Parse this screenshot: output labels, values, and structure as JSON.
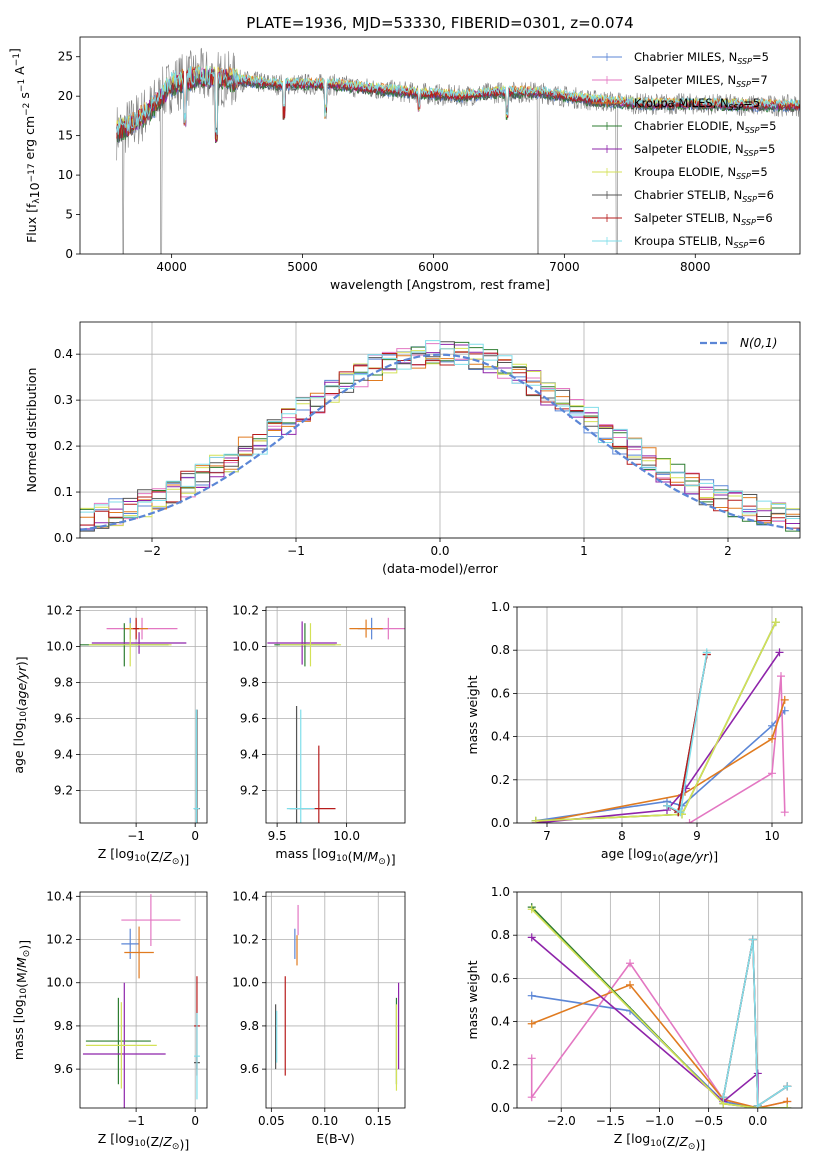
{
  "figure_title": "PLATE=1936, MJD=53330, FIBERID=0301, z=0.074",
  "colors": {
    "chabrier_miles": "#5b86d6",
    "salpeter_miles": "#e377c2",
    "kroupa_miles": "#e07b20",
    "chabrier_elodie": "#2e7d32",
    "salpeter_elodie": "#8e24aa",
    "kroupa_elodie": "#d4e157",
    "chabrier_stelib": "#555555",
    "salpeter_stelib": "#b71c1c",
    "kroupa_stelib": "#80deea",
    "normal_curve": "#5b86d6",
    "data": "#808080"
  },
  "chart_data": [
    {
      "id": "spectrum",
      "type": "line",
      "xlabel": "wavelength [Angstrom, rest frame]",
      "ylabel": "Flux [f_λ10^-17 erg cm^-2 s^-1 A^-1]",
      "xlim": [
        3300,
        8800
      ],
      "ylim": [
        0,
        27.5
      ],
      "xticks": [
        4000,
        5000,
        6000,
        7000,
        8000
      ],
      "yticks": [
        0,
        5,
        10,
        15,
        20,
        25
      ],
      "grid": false,
      "legend_position": "top-right",
      "legend": [
        {
          "key": "chabrier_miles",
          "label": "Chabrier MILES, N",
          "sub": "SSP",
          "tail": "=5"
        },
        {
          "key": "salpeter_miles",
          "label": "Salpeter MILES, N",
          "sub": "SSP",
          "tail": "=7"
        },
        {
          "key": "kroupa_miles",
          "label": "Kroupa MILES, N",
          "sub": "SSP",
          "tail": "=5"
        },
        {
          "key": "chabrier_elodie",
          "label": "Chabrier ELODIE, N",
          "sub": "SSP",
          "tail": "=5"
        },
        {
          "key": "salpeter_elodie",
          "label": "Salpeter ELODIE, N",
          "sub": "SSP",
          "tail": "=5"
        },
        {
          "key": "kroupa_elodie",
          "label": "Kroupa ELODIE, N",
          "sub": "SSP",
          "tail": "=5"
        },
        {
          "key": "chabrier_stelib",
          "label": "Chabrier STELIB, N",
          "sub": "SSP",
          "tail": "=6"
        },
        {
          "key": "salpeter_stelib",
          "label": "Salpeter STELIB, N",
          "sub": "SSP",
          "tail": "=6"
        },
        {
          "key": "kroupa_stelib",
          "label": "Kroupa STELIB, N",
          "sub": "SSP",
          "tail": "=6"
        }
      ],
      "continuum": [
        [
          3580,
          15.5
        ],
        [
          3700,
          16.5
        ],
        [
          3850,
          18.5
        ],
        [
          4000,
          21.5
        ],
        [
          4200,
          22.5
        ],
        [
          4500,
          22.0
        ],
        [
          4800,
          21.5
        ],
        [
          5200,
          21.5
        ],
        [
          5500,
          21.0
        ],
        [
          5800,
          20.5
        ],
        [
          6200,
          20.0
        ],
        [
          6500,
          20.5
        ],
        [
          6800,
          20.5
        ],
        [
          7200,
          19.5
        ],
        [
          7600,
          19.0
        ],
        [
          8000,
          19.0
        ],
        [
          8500,
          18.8
        ],
        [
          8800,
          18.8
        ]
      ],
      "dips": [
        [
          3630,
          0
        ],
        [
          3920,
          0
        ],
        [
          4100,
          16
        ],
        [
          4340,
          14
        ],
        [
          4860,
          17
        ],
        [
          5175,
          17
        ],
        [
          5890,
          18
        ],
        [
          6563,
          17
        ],
        [
          6800,
          0
        ],
        [
          7400,
          0
        ]
      ]
    },
    {
      "id": "residuals",
      "type": "bar",
      "xlabel": "(data-model)/error",
      "ylabel": "Normed distribution",
      "xlim": [
        -2.5,
        2.5
      ],
      "ylim": [
        0,
        0.47
      ],
      "xticks": [
        -2,
        -1,
        0,
        1,
        2
      ],
      "yticks": [
        0.0,
        0.1,
        0.2,
        0.3,
        0.4
      ],
      "grid": true,
      "bin_width": 0.1,
      "legend_position": "top-right",
      "legend_label": "N(0,1)"
    },
    {
      "id": "age_vs_Z",
      "type": "scatter",
      "xlabel": "Z [log10(Z/Z⊙)]",
      "ylabel": "age [log10(age/yr)]",
      "xlim": [
        -1.95,
        0.2
      ],
      "ylim": [
        9.02,
        10.22
      ],
      "xticks": [
        -1,
        0
      ],
      "yticks": [
        9.2,
        9.4,
        9.6,
        9.8,
        10.0,
        10.2
      ],
      "grid": true,
      "points": [
        {
          "k": "chabrier_miles",
          "x": -1.1,
          "y": 10.1,
          "xe": 0.05,
          "ye": 0.06
        },
        {
          "k": "salpeter_miles",
          "x": -0.9,
          "y": 10.1,
          "xe": 0.6,
          "ye": 0.06
        },
        {
          "k": "kroupa_miles",
          "x": -1.0,
          "y": 10.1,
          "xe": 0.2,
          "ye": 0.05
        },
        {
          "k": "chabrier_elodie",
          "x": -1.2,
          "y": 10.01,
          "xe": 0.75,
          "ye": 0.12
        },
        {
          "k": "salpeter_elodie",
          "x": -0.95,
          "y": 10.02,
          "xe": 0.8,
          "ye": 0.06
        },
        {
          "k": "kroupa_elodie",
          "x": -1.1,
          "y": 10.01,
          "xe": 0.7,
          "ye": 0.12
        },
        {
          "k": "chabrier_stelib",
          "x": 0.03,
          "y": 9.1,
          "xe": 0.05,
          "ye": 0.55
        },
        {
          "k": "salpeter_stelib",
          "x": -1.0,
          "y": 10.1,
          "xe": 0.05,
          "ye": 0.06
        },
        {
          "k": "kroupa_stelib",
          "x": 0.02,
          "y": 9.1,
          "xe": 0.05,
          "ye": 0.55
        }
      ]
    },
    {
      "id": "age_vs_mass",
      "type": "scatter",
      "xlabel": "mass [log10(M/M⊙)]",
      "ylabel": "",
      "xlim": [
        9.42,
        10.42
      ],
      "ylim": [
        9.02,
        10.22
      ],
      "xticks": [
        9.5,
        10.0
      ],
      "yticks": [
        9.2,
        9.4,
        9.6,
        9.8,
        10.0,
        10.2
      ],
      "grid": true,
      "points": [
        {
          "k": "chabrier_miles",
          "x": 10.18,
          "y": 10.1,
          "xe": 0.1,
          "ye": 0.06
        },
        {
          "k": "salpeter_miles",
          "x": 10.3,
          "y": 10.1,
          "xe": 0.12,
          "ye": 0.06
        },
        {
          "k": "kroupa_miles",
          "x": 10.14,
          "y": 10.1,
          "xe": 0.12,
          "ye": 0.05
        },
        {
          "k": "chabrier_elodie",
          "x": 9.7,
          "y": 10.01,
          "xe": 0.22,
          "ye": 0.12
        },
        {
          "k": "salpeter_elodie",
          "x": 9.68,
          "y": 10.02,
          "xe": 0.25,
          "ye": 0.12
        },
        {
          "k": "kroupa_elodie",
          "x": 9.74,
          "y": 10.01,
          "xe": 0.22,
          "ye": 0.12
        },
        {
          "k": "chabrier_stelib",
          "x": 9.64,
          "y": 9.1,
          "xe": 0.05,
          "ye": 0.57
        },
        {
          "k": "salpeter_stelib",
          "x": 9.8,
          "y": 9.1,
          "xe": 0.12,
          "ye": 0.35
        },
        {
          "k": "kroupa_stelib",
          "x": 9.67,
          "y": 9.1,
          "xe": 0.1,
          "ye": 0.55
        }
      ]
    },
    {
      "id": "massweight_vs_age",
      "type": "line",
      "xlabel": "age [log10(age/yr)]",
      "ylabel": "mass weight",
      "xlim": [
        6.6,
        10.4
      ],
      "ylim": [
        0,
        1.0
      ],
      "xticks": [
        7,
        8,
        9,
        10
      ],
      "yticks": [
        0.0,
        0.2,
        0.4,
        0.6,
        0.8,
        1.0
      ],
      "grid": true,
      "series": [
        {
          "k": "chabrier_miles",
          "x": [
            6.85,
            8.6,
            8.8,
            10.0,
            10.17
          ],
          "y": [
            0.01,
            0.1,
            0.08,
            0.45,
            0.52
          ]
        },
        {
          "k": "salpeter_miles",
          "x": [
            8.9,
            10.0,
            10.12,
            10.17
          ],
          "y": [
            0.0,
            0.23,
            0.68,
            0.05
          ]
        },
        {
          "k": "kroupa_miles",
          "x": [
            6.85,
            8.8,
            10.0,
            10.17
          ],
          "y": [
            0.0,
            0.13,
            0.39,
            0.57
          ]
        },
        {
          "k": "chabrier_elodie",
          "x": [
            6.85,
            8.8,
            10.05
          ],
          "y": [
            0.01,
            0.04,
            0.93
          ]
        },
        {
          "k": "salpeter_elodie",
          "x": [
            6.85,
            8.6,
            8.85,
            10.1
          ],
          "y": [
            0.0,
            0.06,
            0.16,
            0.79
          ]
        },
        {
          "k": "kroupa_elodie",
          "x": [
            6.85,
            8.8,
            10.05
          ],
          "y": [
            0.01,
            0.04,
            0.93
          ]
        },
        {
          "k": "chabrier_stelib",
          "x": [
            8.6,
            8.75,
            9.13
          ],
          "y": [
            0.08,
            0.05,
            0.78
          ]
        },
        {
          "k": "salpeter_stelib",
          "x": [
            8.6,
            8.75,
            9.13
          ],
          "y": [
            0.08,
            0.05,
            0.78
          ]
        },
        {
          "k": "kroupa_stelib",
          "x": [
            8.6,
            8.78,
            9.13
          ],
          "y": [
            0.08,
            0.05,
            0.79
          ]
        }
      ]
    },
    {
      "id": "mass_vs_Z",
      "type": "scatter",
      "xlabel": "Z [log10(Z/Z⊙)]",
      "ylabel": "mass [log10(M/M⊙)]",
      "xlim": [
        -1.95,
        0.2
      ],
      "ylim": [
        9.42,
        10.42
      ],
      "xticks": [
        -1,
        0
      ],
      "yticks": [
        9.6,
        9.8,
        10.0,
        10.2,
        10.4
      ],
      "grid": true,
      "points": [
        {
          "k": "chabrier_miles",
          "x": -1.1,
          "y": 10.18,
          "xe": 0.15,
          "ye": 0.07
        },
        {
          "k": "salpeter_miles",
          "x": -0.75,
          "y": 10.29,
          "xe": 0.5,
          "ye": 0.12
        },
        {
          "k": "kroupa_miles",
          "x": -0.95,
          "y": 10.14,
          "xe": 0.25,
          "ye": 0.12
        },
        {
          "k": "chabrier_elodie",
          "x": -1.3,
          "y": 9.73,
          "xe": 0.55,
          "ye": 0.2
        },
        {
          "k": "salpeter_elodie",
          "x": -1.2,
          "y": 9.67,
          "xe": 0.7,
          "ye": 0.33
        },
        {
          "k": "kroupa_elodie",
          "x": -1.25,
          "y": 9.71,
          "xe": 0.6,
          "ye": 0.2
        },
        {
          "k": "chabrier_stelib",
          "x": 0.03,
          "y": 9.63,
          "xe": 0.05,
          "ye": 0.03
        },
        {
          "k": "salpeter_stelib",
          "x": 0.03,
          "y": 9.8,
          "xe": 0.05,
          "ye": 0.23
        },
        {
          "k": "kroupa_stelib",
          "x": 0.03,
          "y": 9.66,
          "xe": 0.05,
          "ye": 0.2
        }
      ]
    },
    {
      "id": "mass_vs_EBV",
      "type": "scatter",
      "xlabel": "E(B-V)",
      "ylabel": "",
      "xlim": [
        0.045,
        0.175
      ],
      "ylim": [
        9.42,
        10.42
      ],
      "xticks": [
        0.05,
        0.1,
        0.15
      ],
      "yticks": [
        9.6,
        9.8,
        10.0,
        10.2,
        10.4
      ],
      "grid": true,
      "points": [
        {
          "k": "chabrier_miles",
          "x": 0.072,
          "y": 10.18,
          "xe": 0.0,
          "ye": 0.07
        },
        {
          "k": "salpeter_miles",
          "x": 0.075,
          "y": 10.29,
          "xe": 0.0,
          "ye": 0.07
        },
        {
          "k": "kroupa_miles",
          "x": 0.074,
          "y": 10.15,
          "xe": 0.0,
          "ye": 0.07
        },
        {
          "k": "chabrier_elodie",
          "x": 0.167,
          "y": 9.73,
          "xe": 0.0,
          "ye": 0.2
        },
        {
          "k": "salpeter_elodie",
          "x": 0.169,
          "y": 9.8,
          "xe": 0.0,
          "ye": 0.2
        },
        {
          "k": "kroupa_elodie",
          "x": 0.167,
          "y": 9.7,
          "xe": 0.0,
          "ye": 0.2
        },
        {
          "k": "chabrier_stelib",
          "x": 0.054,
          "y": 9.75,
          "xe": 0.0,
          "ye": 0.15
        },
        {
          "k": "salpeter_stelib",
          "x": 0.063,
          "y": 9.8,
          "xe": 0.0,
          "ye": 0.23
        },
        {
          "k": "kroupa_stelib",
          "x": 0.055,
          "y": 9.75,
          "xe": 0.0,
          "ye": 0.12
        }
      ]
    },
    {
      "id": "massweight_vs_Z",
      "type": "line",
      "xlabel": "Z [log10(Z/Z⊙)]",
      "ylabel": "mass weight",
      "xlim": [
        -2.45,
        0.45
      ],
      "ylim": [
        0,
        1.0
      ],
      "xticks": [
        -2.0,
        -1.5,
        -1.0,
        -0.5,
        0.0
      ],
      "yticks": [
        0.0,
        0.2,
        0.4,
        0.6,
        0.8,
        1.0
      ],
      "grid": true,
      "series": [
        {
          "k": "chabrier_miles",
          "x": [
            -2.3,
            -1.3,
            -0.35,
            0.0,
            0.3
          ],
          "y": [
            0.52,
            0.45,
            0.03,
            0.0,
            0.0
          ]
        },
        {
          "k": "salpeter_miles",
          "x": [
            -2.3,
            -2.3,
            -1.3,
            -0.35,
            0.0,
            0.3
          ],
          "y": [
            0.23,
            0.05,
            0.67,
            0.04,
            0.0,
            0.03
          ]
        },
        {
          "k": "kroupa_miles",
          "x": [
            -2.3,
            -1.3,
            -0.35,
            0.0,
            0.3
          ],
          "y": [
            0.39,
            0.57,
            0.04,
            0.0,
            0.03
          ]
        },
        {
          "k": "chabrier_elodie",
          "x": [
            -2.3,
            -0.35,
            0.0,
            0.3
          ],
          "y": [
            0.93,
            0.02,
            0.0,
            0.0
          ]
        },
        {
          "k": "salpeter_elodie",
          "x": [
            -2.3,
            -0.35,
            0.0,
            0.0
          ],
          "y": [
            0.79,
            0.03,
            0.16,
            0.0
          ]
        },
        {
          "k": "kroupa_elodie",
          "x": [
            -2.3,
            -0.35,
            0.0,
            0.3
          ],
          "y": [
            0.92,
            0.02,
            0.0,
            0.0
          ]
        },
        {
          "k": "chabrier_stelib",
          "x": [
            -0.35,
            -0.05,
            0.0,
            0.3
          ],
          "y": [
            0.05,
            0.78,
            0.01,
            0.1
          ]
        },
        {
          "k": "salpeter_stelib",
          "x": [
            -0.35,
            -0.05,
            0.0,
            0.3
          ],
          "y": [
            0.05,
            0.78,
            0.01,
            0.1
          ]
        },
        {
          "k": "kroupa_stelib",
          "x": [
            -0.35,
            -0.05,
            0.0,
            0.3
          ],
          "y": [
            0.05,
            0.78,
            0.01,
            0.1
          ]
        }
      ]
    }
  ]
}
